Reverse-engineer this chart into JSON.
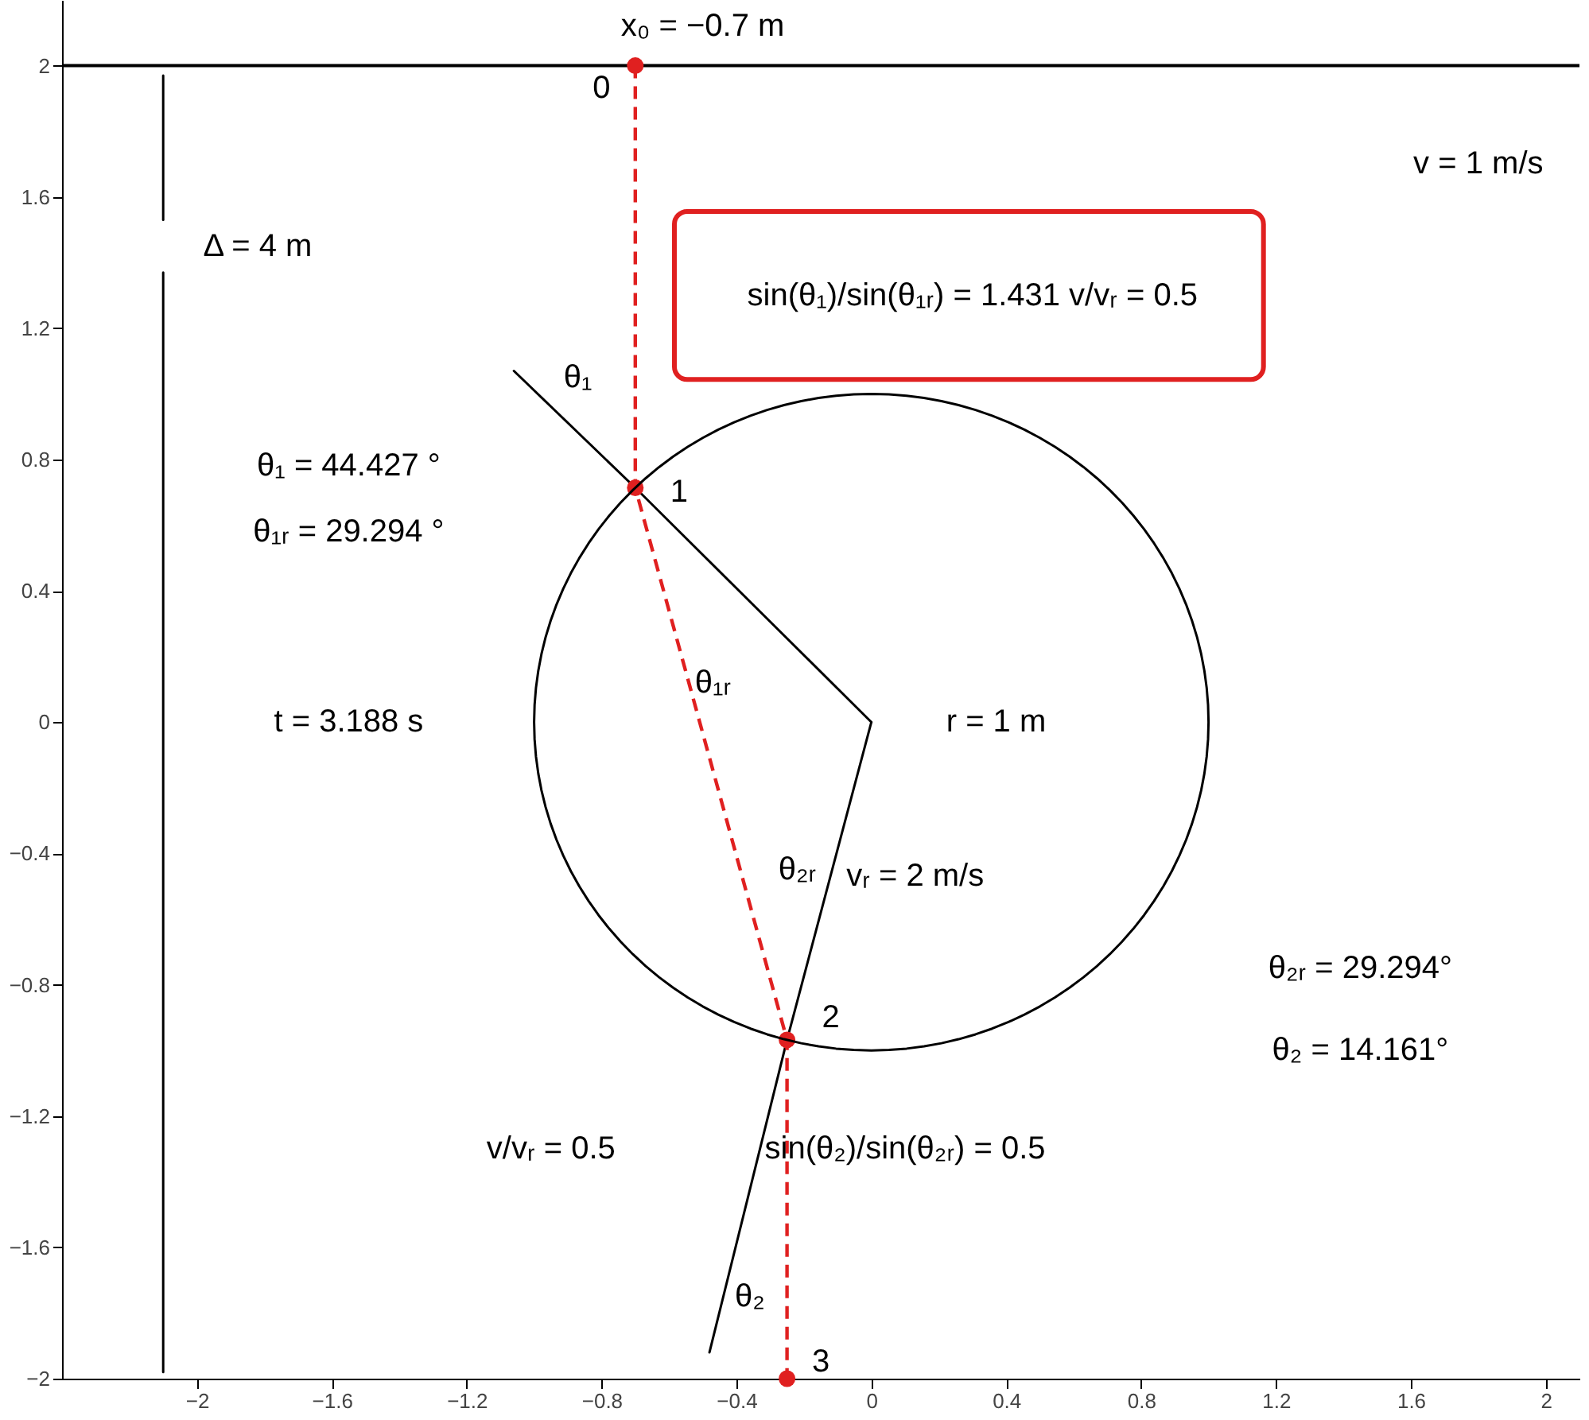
{
  "chart_data": {
    "type": "line",
    "xlim": [
      -2.4,
      2.1
    ],
    "ylim": [
      -2,
      2.2
    ],
    "xticks": [
      -2,
      -1.6,
      -1.2,
      -0.8,
      -0.4,
      0,
      0.4,
      0.8,
      1.2,
      1.6,
      2
    ],
    "yticks": [
      -2,
      -1.6,
      -1.2,
      -0.8,
      -0.4,
      0,
      0.4,
      0.8,
      1.2,
      1.6,
      2
    ],
    "grid": false,
    "series": [
      {
        "color": "#000000",
        "x": [
          -1.06,
          -0.7,
          0
        ],
        "values": [
          1.07,
          0.714,
          0
        ]
      },
      {
        "color": "#000000",
        "x": [
          -0.48,
          -0.25,
          0
        ],
        "values": [
          -1.92,
          -0.968,
          0
        ]
      },
      {
        "color": "#000000",
        "x": [
          -2.1,
          -2.1
        ],
        "values": [
          1.97,
          1.53
        ]
      },
      {
        "color": "#000000",
        "x": [
          -2.1,
          -2.1
        ],
        "values": [
          -1.98,
          1.37
        ]
      },
      {
        "color": "#e02020",
        "line_style": "dashed",
        "x": [
          -0.7,
          -0.7,
          -0.25,
          -0.25
        ],
        "values": [
          2,
          0.714,
          -0.968,
          -2
        ]
      },
      {
        "type": "scatter",
        "color": "#e02020",
        "marker": "circle",
        "x": [
          -0.7,
          -0.7,
          -0.25,
          -0.25
        ],
        "values": [
          2,
          0.714,
          -0.968,
          -2
        ]
      }
    ],
    "ref_lines": [
      {
        "axis": "y",
        "value": 2,
        "color": "#000000"
      }
    ],
    "annotations": [
      "x₀ = −0.7 m",
      "0",
      "v = 1 m/s",
      "Δ = 4 m",
      "sin(θ₁)/sin(θ₁ᵣ) = 1.431    v/vᵣ = 0.5",
      "θ₁",
      "θ₁ = 44.427 °",
      "θ₁ᵣ = 29.294 °",
      "1",
      "θ₁ᵣ",
      "t = 3.188 s",
      "r = 1 m",
      "θ₂ᵣ",
      "vᵣ = 2 m/s",
      "θ₂ᵣ = 29.294°",
      "θ₂ = 14.161°",
      "2",
      "v/vᵣ = 0.5",
      "sin(θ₂)/sin(θ₂ᵣ) = 0.5",
      "θ₂",
      "3"
    ]
  }
}
